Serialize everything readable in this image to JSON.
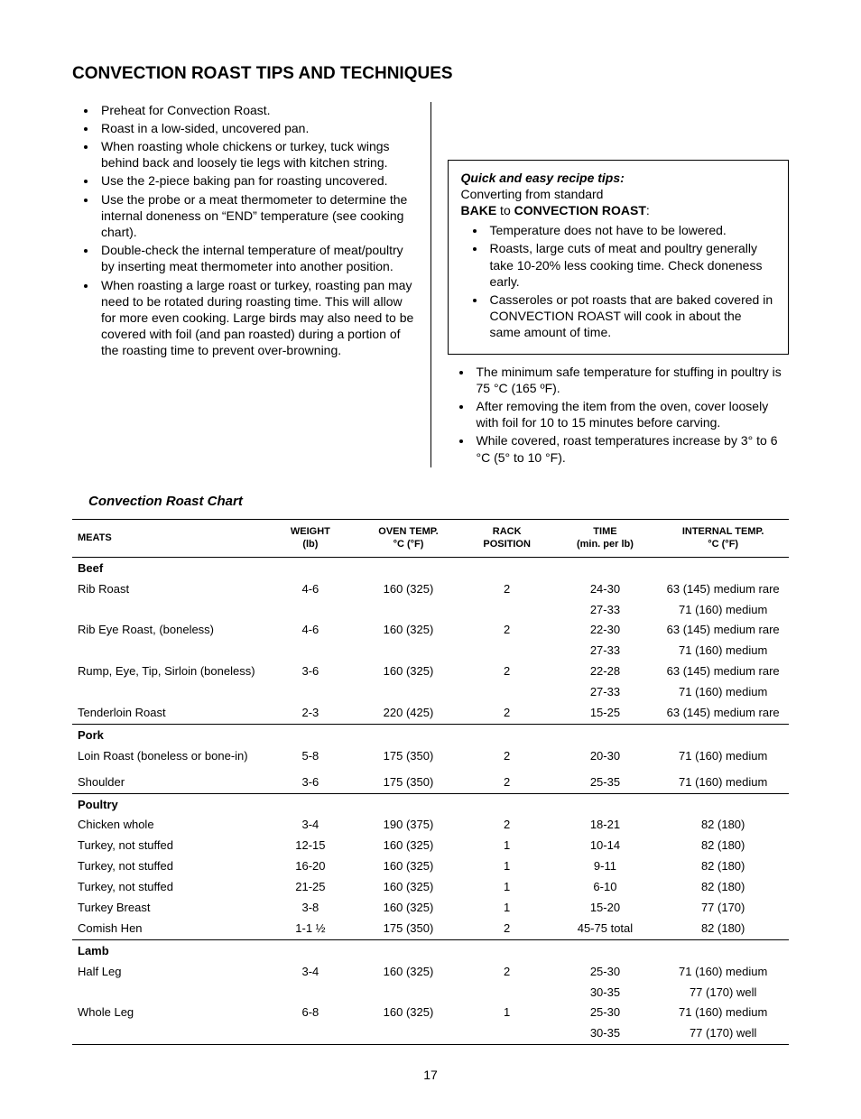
{
  "title": "CONVECTION ROAST TIPS AND TECHNIQUES",
  "left_bullets": [
    "Preheat for Convection Roast.",
    "Roast in a low-sided, uncovered pan.",
    "When roasting whole chickens or turkey, tuck wings behind back and loosely tie legs with kitchen string.",
    "Use the 2-piece baking pan for roasting uncovered.",
    "Use the probe or a meat thermometer to determine the internal doneness on “END” temperature (see cooking chart).",
    "Double-check the internal temperature of meat/poultry by inserting meat thermometer into another position.",
    "When roasting a large roast or turkey, roasting pan may need to be rotated during roasting time. This will allow for more even cooking. Large birds may also need to be covered with foil (and pan roasted) during a portion of the roasting time to prevent over-browning."
  ],
  "box": {
    "tips_title": "Quick and easy recipe tips:",
    "convert_prefix": "Converting from standard ",
    "bake": "BAKE",
    "to": " to ",
    "conv_roast": "CONVECTION ROAST",
    "colon": ":",
    "bullets": [
      "Temperature does not have to be lowered.",
      "Roasts, large cuts of meat and poultry generally take 10-20% less cooking time. Check doneness early.",
      "Casseroles or pot roasts that are baked covered in CONVECTION ROAST will cook in about the same amount of time."
    ]
  },
  "right_bullets": [
    "The minimum safe temperature for stuffing in poultry is 75 °C (165 ºF).",
    "After removing the item from the oven, cover loosely with foil for 10 to 15 minutes before carving.",
    "While covered, roast temperatures increase by 3° to 6 °C (5° to 10 °F)."
  ],
  "chart_title": "Convection Roast Chart",
  "table": {
    "columns": {
      "meats": "MEATS",
      "weight1": "WEIGHT",
      "weight2": "(lb)",
      "oven1": "OVEN TEMP.",
      "oven2": "°C (°F)",
      "rack1": "RACK",
      "rack2": "POSITION",
      "time1": "TIME",
      "time2": "(min. per lb)",
      "int1": "INTERNAL TEMP.",
      "int2": "°C (°F)"
    },
    "rows": [
      {
        "section": true,
        "cells": [
          "Beef",
          "",
          "",
          "",
          "",
          ""
        ]
      },
      {
        "section": false,
        "cells": [
          "Rib Roast",
          "4-6",
          "160 (325)",
          "2",
          "24-30",
          "63 (145) medium rare"
        ]
      },
      {
        "section": false,
        "cells": [
          "",
          "",
          "",
          "",
          "27-33",
          "71 (160) medium"
        ]
      },
      {
        "section": false,
        "cells": [
          "Rib Eye Roast, (boneless)",
          "4-6",
          "160 (325)",
          "2",
          "22-30",
          "63 (145) medium rare"
        ]
      },
      {
        "section": false,
        "cells": [
          "",
          "",
          "",
          "",
          "27-33",
          "71 (160) medium"
        ]
      },
      {
        "section": false,
        "cells": [
          "Rump, Eye, Tip, Sirloin (boneless)",
          "3-6",
          "160 (325)",
          "2",
          "22-28",
          "63 (145) medium rare"
        ]
      },
      {
        "section": false,
        "cells": [
          "",
          "",
          "",
          "",
          "27-33",
          "71 (160) medium"
        ]
      },
      {
        "section": false,
        "cells": [
          "Tenderloin Roast",
          "2-3",
          "220 (425)",
          "2",
          "15-25",
          "63 (145) medium rare"
        ]
      },
      {
        "section": true,
        "cells": [
          "Pork",
          "",
          "",
          "",
          "",
          ""
        ]
      },
      {
        "section": false,
        "cells": [
          "Loin Roast (boneless or bone-in)",
          "5-8",
          "175 (350)",
          "2",
          "20-30",
          "71 (160) medium"
        ]
      },
      {
        "section": false,
        "cells": [
          "",
          "",
          "",
          "",
          "",
          ""
        ]
      },
      {
        "section": false,
        "cells": [
          "Shoulder",
          "3-6",
          "175 (350)",
          "2",
          "25-35",
          "71 (160) medium"
        ]
      },
      {
        "section": true,
        "cells": [
          "Poultry",
          "",
          "",
          "",
          "",
          ""
        ]
      },
      {
        "section": false,
        "cells": [
          "Chicken whole",
          "3-4",
          "190 (375)",
          "2",
          "18-21",
          "82 (180)"
        ]
      },
      {
        "section": false,
        "cells": [
          "Turkey, not stuffed",
          "12-15",
          "160 (325)",
          "1",
          "10-14",
          "82 (180)"
        ]
      },
      {
        "section": false,
        "cells": [
          "Turkey, not stuffed",
          "16-20",
          "160 (325)",
          "1",
          "9-11",
          "82 (180)"
        ]
      },
      {
        "section": false,
        "cells": [
          "Turkey, not stuffed",
          "21-25",
          "160 (325)",
          "1",
          "6-10",
          "82 (180)"
        ]
      },
      {
        "section": false,
        "cells": [
          "Turkey Breast",
          "3-8",
          "160 (325)",
          "1",
          "15-20",
          "77 (170)"
        ]
      },
      {
        "section": false,
        "cells": [
          "Comish Hen",
          "1-1 ½",
          "175 (350)",
          "2",
          "45-75 total",
          "82 (180)"
        ]
      },
      {
        "section": true,
        "cells": [
          "Lamb",
          "",
          "",
          "",
          "",
          ""
        ]
      },
      {
        "section": false,
        "cells": [
          "Half Leg",
          "3-4",
          "160 (325)",
          "2",
          "25-30",
          "71 (160) medium"
        ]
      },
      {
        "section": false,
        "cells": [
          "",
          "",
          "",
          "",
          "30-35",
          "77 (170)  well"
        ]
      },
      {
        "section": false,
        "cells": [
          "Whole Leg",
          "6-8",
          "160 (325)",
          "1",
          "25-30",
          "71 (160) medium"
        ]
      },
      {
        "section": false,
        "bottom": true,
        "cells": [
          "",
          "",
          "",
          "",
          "30-35",
          "77 (170)  well"
        ]
      }
    ]
  },
  "page_number": "17",
  "style": {
    "font_body": 14,
    "font_title": 19,
    "font_table": 13,
    "font_th": 11,
    "text_color": "#000000",
    "bg_color": "#ffffff",
    "border_color": "#000000",
    "col_widths": {
      "meats": 225,
      "weight": 100,
      "oven": 120,
      "rack": 100,
      "time": 120,
      "internal": 150
    }
  }
}
